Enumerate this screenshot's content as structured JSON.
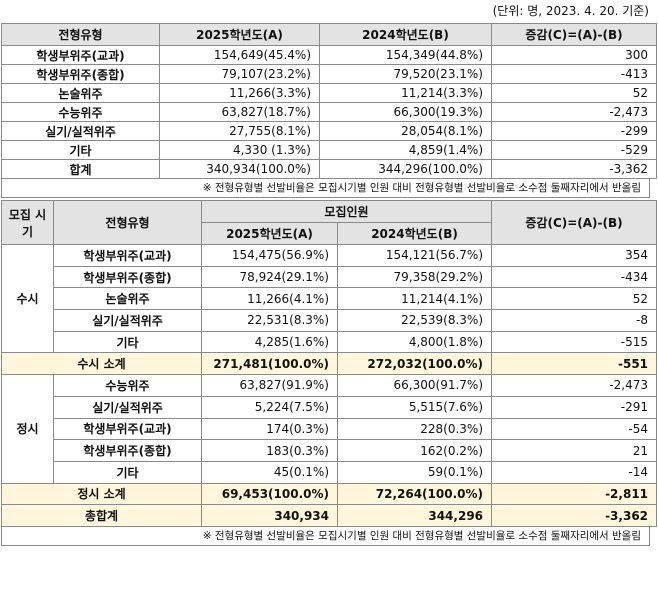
{
  "unit": "(단위: 명, 2023. 4. 20. 기준)",
  "table1": {
    "header": [
      "전형유형",
      "2025학년도(A)",
      "2024학년도(B)",
      "증감(C)=(A)-(B)"
    ],
    "rows": [
      [
        "학생부위주(교과)",
        "154,649(45.4%)",
        "154,349(44.8%)",
        "300"
      ],
      [
        "학생부위주(종합)",
        "79,107(23.2%)",
        "79,520(23.1%)",
        "-413"
      ],
      [
        "논술위주",
        "11,266(3.3%)",
        "11,214(3.3%)",
        "52"
      ],
      [
        "수능위주",
        "63,827(18.7%)",
        "66,300(19.3%)",
        "-2,473"
      ],
      [
        "실기/실적위주",
        "27,755(8.1%)",
        "28,054(8.1%)",
        "-299"
      ],
      [
        "기타",
        "4,330 (1.3%)",
        "4,859(1.4%)",
        "-529"
      ],
      [
        "합계",
        "340,934(100.0%)",
        "344,296(100.0%)",
        "-3,362"
      ]
    ]
  },
  "note1": "※ 전형유형별 선발비율은 모집시기별 인원 대비 전형유형별 선발비율로 소수점 둘째자리에서 반올림",
  "table2": {
    "header": {
      "period": "모집 시기",
      "type": "전형유형",
      "group": "모집인원",
      "a": "2025학년도(A)",
      "b": "2024학년도(B)",
      "diff": "증감(C)=(A)-(B)"
    },
    "groups": [
      {
        "name": "수시",
        "rows": [
          [
            "학생부위주(교과)",
            "154,475(56.9%)",
            "154,121(56.7%)",
            "354"
          ],
          [
            "학생부위주(종합)",
            "78,924(29.1%)",
            "79,358(29.2%)",
            "-434"
          ],
          [
            "논술위주",
            "11,266(4.1%)",
            "11,214(4.1%)",
            "52"
          ],
          [
            "실기/실적위주",
            "22,531(8.3%)",
            "22,539(8.3%)",
            "-8"
          ],
          [
            "기타",
            "4,285(1.6%)",
            "4,800(1.8%)",
            "-515"
          ]
        ],
        "subtotal": [
          "수시 소계",
          "271,481(100.0%)",
          "272,032(100.0%)",
          "-551"
        ]
      },
      {
        "name": "정시",
        "rows": [
          [
            "수능위주",
            "63,827(91.9%)",
            "66,300(91.7%)",
            "-2,473"
          ],
          [
            "실기/실적위주",
            "5,224(7.5%)",
            "5,515(7.6%)",
            "-291"
          ],
          [
            "학생부위주(교과)",
            "174(0.3%)",
            "228(0.3%)",
            "-54"
          ],
          [
            "학생부위주(종합)",
            "183(0.3%)",
            "162(0.2%)",
            "21"
          ],
          [
            "기타",
            "45(0.1%)",
            "59(0.1%)",
            "-14"
          ]
        ],
        "subtotal": [
          "정시 소계",
          "69,453(100.0%)",
          "72,264(100.0%)",
          "-2,811"
        ]
      }
    ],
    "total": [
      "총합계",
      "340,934",
      "344,296",
      "-3,362"
    ]
  },
  "note2": "※ 전형유형별 선발비율은 모집시기별 인원 대비 전형유형별 선발비율로 소수점 둘째자리에서 반올림"
}
